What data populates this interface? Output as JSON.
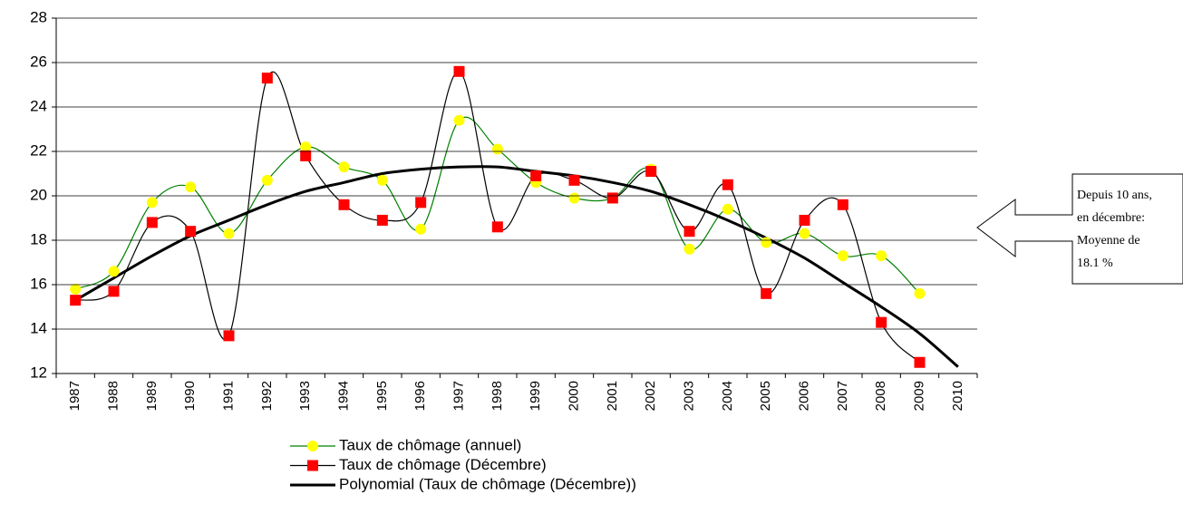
{
  "chart_data": {
    "type": "line",
    "categories": [
      "1987",
      "1988",
      "1989",
      "1990",
      "1991",
      "1992",
      "1993",
      "1994",
      "1995",
      "1996",
      "1997",
      "1998",
      "1999",
      "2000",
      "2001",
      "2002",
      "2003",
      "2004",
      "2005",
      "2006",
      "2007",
      "2008",
      "2009",
      "2010"
    ],
    "series": [
      {
        "name": "Taux de chômage (annuel)",
        "color": "#008000",
        "marker": "circle",
        "marker_color": "#ffff00",
        "smooth": true,
        "width": 1.2,
        "values": [
          15.8,
          16.6,
          19.7,
          20.4,
          18.3,
          20.7,
          22.2,
          21.3,
          20.7,
          18.5,
          23.4,
          22.1,
          20.6,
          19.9,
          19.9,
          21.2,
          17.6,
          19.4,
          17.9,
          18.3,
          17.3,
          17.3,
          15.6,
          null
        ]
      },
      {
        "name": "Taux de chômage (Décembre)",
        "color": "#000000",
        "marker": "square",
        "marker_color": "#ff0000",
        "smooth": true,
        "width": 1.2,
        "values": [
          15.3,
          15.7,
          18.8,
          18.4,
          13.7,
          25.3,
          21.8,
          19.6,
          18.9,
          19.7,
          25.6,
          18.6,
          20.9,
          20.7,
          19.9,
          21.1,
          18.4,
          20.5,
          15.6,
          18.9,
          19.6,
          14.3,
          12.5,
          null
        ]
      },
      {
        "name": "Polynomial (Taux de chômage (Décembre))",
        "color": "#000000",
        "marker": "none",
        "smooth": true,
        "width": 3,
        "values": [
          15.3,
          16.3,
          17.3,
          18.2,
          18.9,
          19.6,
          20.2,
          20.6,
          21.0,
          21.2,
          21.3,
          21.3,
          21.1,
          20.9,
          20.6,
          20.2,
          19.6,
          18.9,
          18.1,
          17.2,
          16.1,
          15.0,
          13.8,
          12.3
        ]
      }
    ],
    "ylim": [
      12,
      28
    ],
    "yticks": [
      12,
      14,
      16,
      18,
      20,
      22,
      24,
      26,
      28
    ],
    "grid": true,
    "annotation": [
      "Depuis 10 ans,",
      "en décembre:",
      "Moyenne de",
      "18.1 %"
    ]
  }
}
